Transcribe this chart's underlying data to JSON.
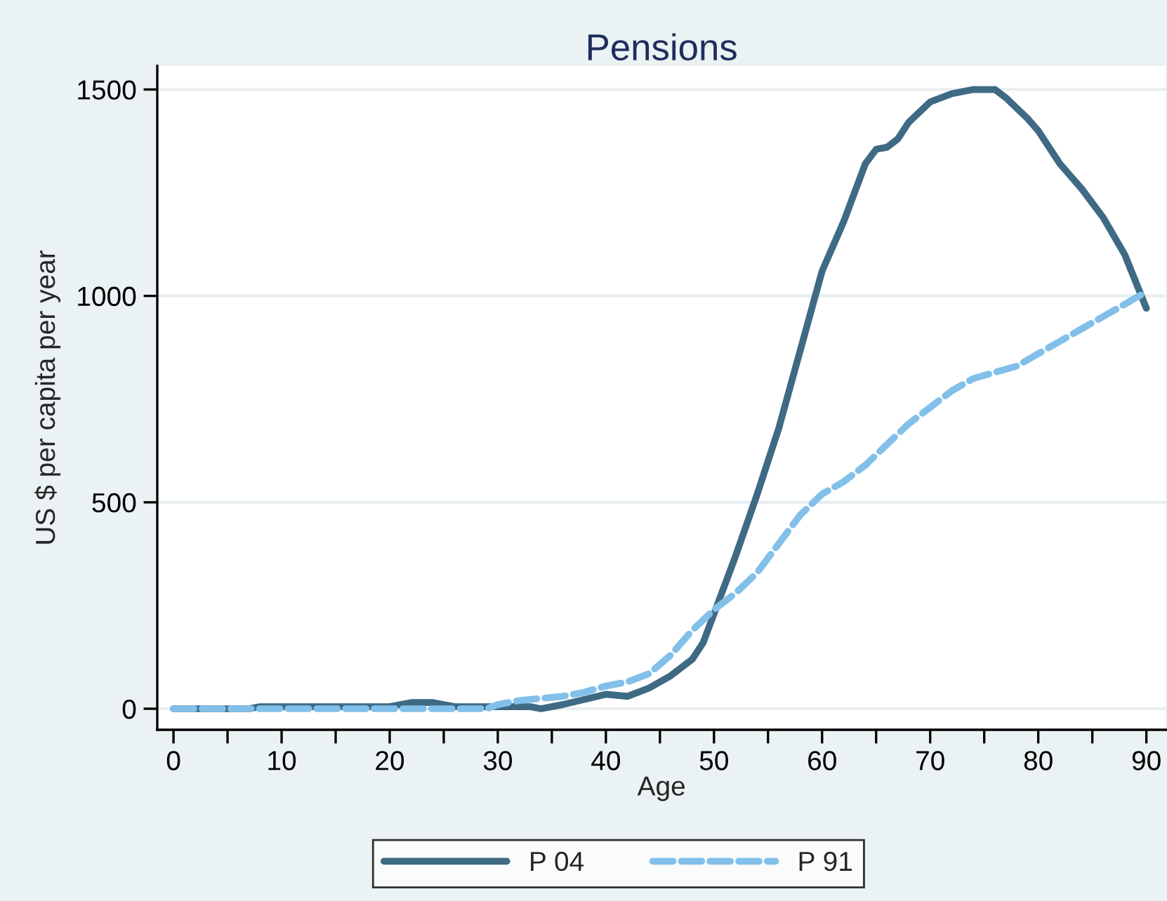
{
  "chart_data": {
    "type": "line",
    "title": "Pensions",
    "xlabel": "Age",
    "ylabel": "US $ per capita per year",
    "xlim": [
      -1.5,
      91.8
    ],
    "ylim": [
      -51,
      1557
    ],
    "xticks": [
      0,
      {
        "value": 5,
        "label": null
      },
      10,
      {
        "value": 15,
        "label": null
      },
      20,
      {
        "value": 25,
        "label": null
      },
      30,
      {
        "value": 35,
        "label": null
      },
      40,
      {
        "value": 45,
        "label": null
      },
      50,
      {
        "value": 55,
        "label": null
      },
      60,
      {
        "value": 65,
        "label": null
      },
      70,
      {
        "value": 75,
        "label": null
      },
      80,
      {
        "value": 85,
        "label": null
      },
      90
    ],
    "yticks": [
      0,
      500,
      1000,
      1500
    ],
    "grid": "y",
    "legend": "bottom",
    "series": [
      {
        "name": "P 04",
        "color": "#3e6a84",
        "line_style": "solid",
        "x": [
          0,
          7,
          8,
          20,
          22,
          24,
          26,
          29,
          33,
          34,
          36,
          40,
          42,
          44,
          46,
          48,
          49,
          50,
          52,
          54,
          56,
          58,
          60,
          62,
          64,
          65,
          66,
          67,
          68,
          70,
          72,
          74,
          76,
          77,
          79,
          80,
          82,
          84,
          86,
          88,
          90
        ],
        "values": [
          0,
          0,
          5,
          5,
          15,
          15,
          5,
          5,
          5,
          0,
          10,
          35,
          30,
          50,
          80,
          120,
          160,
          230,
          370,
          520,
          680,
          870,
          1060,
          1180,
          1320,
          1355,
          1360,
          1380,
          1420,
          1470,
          1490,
          1500,
          1500,
          1480,
          1430,
          1400,
          1320,
          1260,
          1190,
          1100,
          970
        ]
      },
      {
        "name": "P 91",
        "color": "#82c0e9",
        "line_style": "dashed",
        "x": [
          0,
          29,
          30,
          32,
          34,
          36,
          38,
          40,
          42,
          44,
          46,
          48,
          50,
          52,
          54,
          56,
          58,
          60,
          62,
          64,
          66,
          68,
          70,
          72,
          74,
          76,
          78,
          80,
          82,
          84,
          86,
          88,
          90
        ],
        "values": [
          0,
          0,
          10,
          20,
          25,
          30,
          40,
          55,
          65,
          85,
          130,
          190,
          240,
          280,
          330,
          400,
          470,
          520,
          550,
          590,
          640,
          690,
          730,
          770,
          800,
          815,
          830,
          860,
          890,
          920,
          950,
          980,
          1010
        ]
      }
    ]
  }
}
